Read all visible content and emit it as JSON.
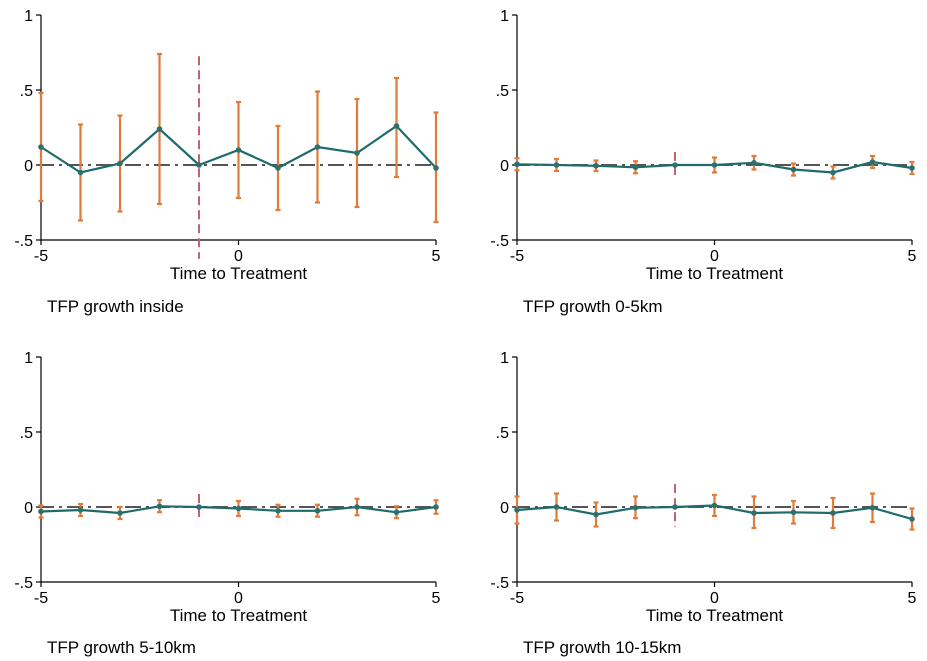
{
  "colors": {
    "line": "#1f6b6b",
    "point": "#2e6f6f",
    "ci": "#e07b39",
    "zero_line": "#555555",
    "treatment_line": "#c0646e"
  },
  "chart_data": [
    {
      "type": "line",
      "caption": "TFP growth inside",
      "xlabel": "Time to Treatment",
      "ylabel": "",
      "xlim": [
        -5,
        5
      ],
      "ylim": [
        -0.5,
        1
      ],
      "x_ticks": [
        "-5",
        "0",
        "5"
      ],
      "y_ticks": [
        "-.5",
        "0",
        ".5",
        "1"
      ],
      "reference_x": -1,
      "reference_y": 0,
      "x": [
        -5,
        -4,
        -3,
        -2,
        -1,
        0,
        1,
        2,
        3,
        4,
        5
      ],
      "series": [
        {
          "estimate": [
            0.12,
            -0.05,
            0.01,
            0.24,
            0.0,
            0.1,
            -0.02,
            0.12,
            0.08,
            0.26,
            -0.02
          ],
          "ci_low": [
            -0.24,
            -0.37,
            -0.31,
            -0.26,
            null,
            -0.22,
            -0.3,
            -0.25,
            -0.28,
            -0.08,
            -0.38
          ],
          "ci_high": [
            0.48,
            0.27,
            0.33,
            0.74,
            null,
            0.42,
            0.26,
            0.49,
            0.44,
            0.58,
            0.35
          ]
        }
      ]
    },
    {
      "type": "line",
      "caption": "TFP growth 0-5km",
      "xlabel": "Time to Treatment",
      "ylabel": "",
      "xlim": [
        -5,
        5
      ],
      "ylim": [
        -0.5,
        1
      ],
      "x_ticks": [
        "-5",
        "0",
        "5"
      ],
      "y_ticks": [
        "-.5",
        "0",
        ".5",
        "1"
      ],
      "reference_x": -1,
      "reference_y": 0,
      "x": [
        -5,
        -4,
        -3,
        -2,
        -1,
        0,
        1,
        2,
        3,
        4,
        5
      ],
      "series": [
        {
          "estimate": [
            0.005,
            0.0,
            -0.005,
            -0.015,
            0.0,
            0.0,
            0.015,
            -0.03,
            -0.05,
            0.02,
            -0.02
          ],
          "ci_low": [
            -0.035,
            -0.04,
            -0.04,
            -0.055,
            null,
            -0.05,
            -0.03,
            -0.07,
            -0.09,
            -0.02,
            -0.06
          ],
          "ci_high": [
            0.045,
            0.04,
            0.03,
            0.025,
            null,
            0.05,
            0.06,
            0.01,
            -0.01,
            0.06,
            0.02
          ]
        }
      ]
    },
    {
      "type": "line",
      "caption": "TFP growth 5-10km",
      "xlabel": "Time to Treatment",
      "ylabel": "",
      "xlim": [
        -5,
        5
      ],
      "ylim": [
        -0.5,
        1
      ],
      "x_ticks": [
        "-5",
        "0",
        "5"
      ],
      "y_ticks": [
        "-.5",
        "0",
        ".5",
        "1"
      ],
      "reference_x": -1,
      "reference_y": 0,
      "x": [
        -5,
        -4,
        -3,
        -2,
        -1,
        0,
        1,
        2,
        3,
        4,
        5
      ],
      "series": [
        {
          "estimate": [
            -0.03,
            -0.02,
            -0.04,
            0.005,
            0.0,
            -0.01,
            -0.025,
            -0.025,
            0.0,
            -0.035,
            0.0
          ],
          "ci_low": [
            -0.07,
            -0.06,
            -0.08,
            -0.035,
            null,
            -0.06,
            -0.065,
            -0.065,
            -0.055,
            -0.075,
            -0.045
          ],
          "ci_high": [
            0.01,
            0.02,
            0.0,
            0.045,
            null,
            0.04,
            0.015,
            0.015,
            0.055,
            0.005,
            0.045
          ]
        }
      ]
    },
    {
      "type": "line",
      "caption": "TFP growth 10-15km",
      "xlabel": "Time to Treatment",
      "ylabel": "",
      "xlim": [
        -5,
        5
      ],
      "ylim": [
        -0.5,
        1
      ],
      "x_ticks": [
        "-5",
        "0",
        "5"
      ],
      "y_ticks": [
        "-.5",
        "0",
        ".5",
        "1"
      ],
      "reference_x": -1,
      "reference_y": 0,
      "x": [
        -5,
        -4,
        -3,
        -2,
        -1,
        0,
        1,
        2,
        3,
        4,
        5
      ],
      "series": [
        {
          "estimate": [
            -0.02,
            0.0,
            -0.05,
            -0.005,
            0.0,
            0.01,
            -0.04,
            -0.035,
            -0.04,
            -0.005,
            -0.08
          ],
          "ci_low": [
            -0.11,
            -0.09,
            -0.13,
            -0.075,
            null,
            -0.06,
            -0.14,
            -0.11,
            -0.14,
            -0.1,
            -0.15
          ],
          "ci_high": [
            0.07,
            0.09,
            0.03,
            0.07,
            null,
            0.08,
            0.07,
            0.04,
            0.06,
            0.09,
            -0.01
          ]
        }
      ]
    }
  ]
}
